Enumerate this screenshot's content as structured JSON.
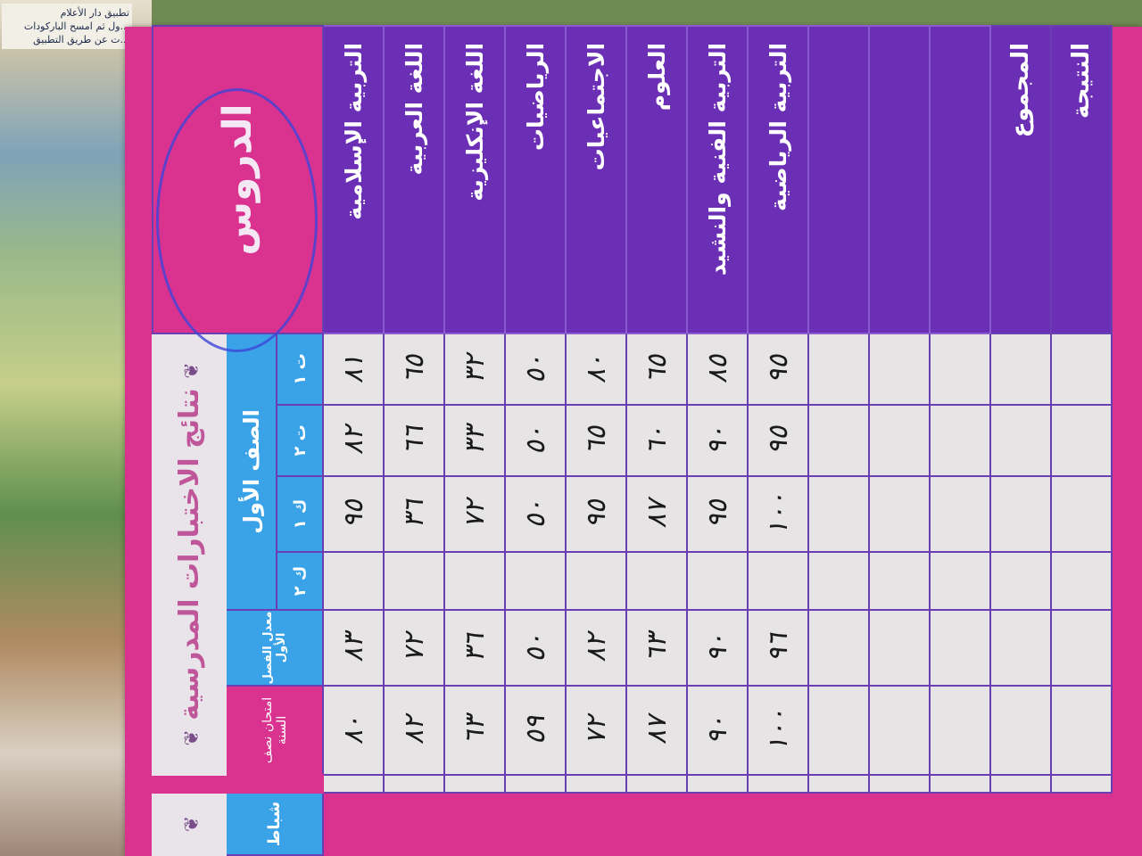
{
  "background_text": [
    "تطبيق دار الأعلام",
    "...ول ثم امسح الباركودات",
    "...ت عن طريق التطبيق"
  ],
  "card": {
    "title": "نتائج الاختبارات المدرسية",
    "subjects_header": "الدروس",
    "grade_header": "الصف الأول",
    "months": [
      "ت ١",
      "ت ٢",
      "ك ١",
      "ك ٢"
    ],
    "average_header": "معدل الفصل الأول",
    "midyear_exam_header": "امتحان نصف السنة",
    "next_section_header": "شباط",
    "total_label": "المجموع",
    "result_label": "النتيجة",
    "ornament": "❦",
    "rows": [
      {
        "subject": "التربية الإسلامية",
        "grades": [
          "٨١",
          "٨٢",
          "٩٥",
          "",
          "٨٣",
          "٨٠"
        ]
      },
      {
        "subject": "اللغة العربية",
        "grades": [
          "٦٥",
          "٦٦",
          "٣٦",
          "",
          "٧٢",
          "٨٢"
        ]
      },
      {
        "subject": "اللغة الإنكليزية",
        "grades": [
          "٣٢",
          "٣٣",
          "٧٢",
          "",
          "٣٦",
          "٦٣"
        ]
      },
      {
        "subject": "الرياضيات",
        "grades": [
          "٥٠",
          "٥٠",
          "٥٠",
          "",
          "٥٠",
          "٥٩"
        ]
      },
      {
        "subject": "الاجتماعيات",
        "grades": [
          "٨٠",
          "٦٥",
          "٩٥",
          "",
          "٨٢",
          "٧٢"
        ]
      },
      {
        "subject": "العلوم",
        "grades": [
          "٦٥",
          "٦٠",
          "٨٧",
          "",
          "٦٣",
          "٨٧"
        ]
      },
      {
        "subject": "التربية الفنية والنشيد",
        "grades": [
          "٨٥",
          "٩٠",
          "٩٥",
          "",
          "٩٠",
          "٩٠"
        ]
      },
      {
        "subject": "التربية الرياضية",
        "grades": [
          "٩٥",
          "٩٥",
          "١٠٠",
          "",
          "٩٦",
          "١٠٠"
        ]
      }
    ]
  },
  "colors": {
    "purple": "#6b2fb6",
    "pink": "#d9328f",
    "blue": "#3aa3e8",
    "grid": "#e6e4e4",
    "stamp": "#3d45d8"
  }
}
